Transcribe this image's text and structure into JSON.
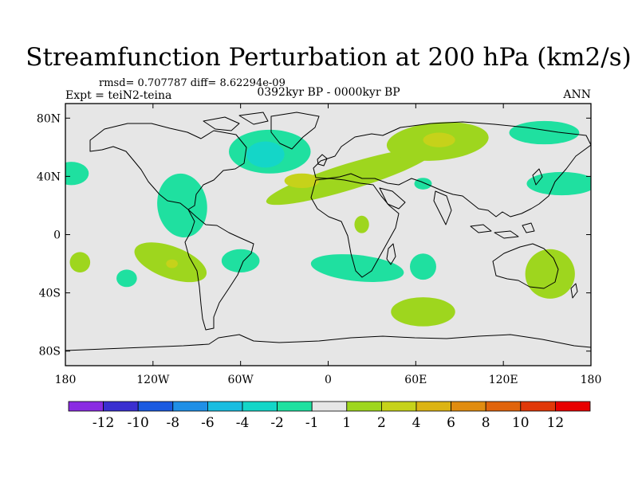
{
  "chart_data": {
    "type": "heatmap",
    "title": "Streamfunction Perturbation at 200 hPa (km2/s)",
    "stats_line": "rmsd= 0.707787 diff= 8.62294e-09",
    "left_label": "Expt = teiN2-teina",
    "center_label": "0392kyr BP - 0000kyr BP",
    "right_label": "ANN",
    "x_axis": {
      "range": [
        -180,
        180
      ],
      "ticks": [
        {
          "value": -180,
          "label": "180"
        },
        {
          "value": -120,
          "label": "120W"
        },
        {
          "value": -60,
          "label": "60W"
        },
        {
          "value": 0,
          "label": "0"
        },
        {
          "value": 60,
          "label": "60E"
        },
        {
          "value": 120,
          "label": "120E"
        },
        {
          "value": 180,
          "label": "180"
        }
      ]
    },
    "y_axis": {
      "range": [
        -90,
        90
      ],
      "ticks": [
        {
          "value": 80,
          "label": "80N"
        },
        {
          "value": 40,
          "label": "40N"
        },
        {
          "value": 0,
          "label": "0"
        },
        {
          "value": -40,
          "label": "40S"
        },
        {
          "value": -80,
          "label": "80S"
        }
      ]
    },
    "colorbar": {
      "colors": [
        "#8a2be2",
        "#3a2fd0",
        "#1a5ae0",
        "#1f8fe6",
        "#19bde0",
        "#14d6c8",
        "#1fe0a0",
        "#e6e6e6",
        "#9ed61e",
        "#c6d21a",
        "#dcb414",
        "#e08c10",
        "#e0640c",
        "#e03808",
        "#e80000"
      ],
      "boundaries": [
        -12,
        -10,
        -8,
        -6,
        -4,
        -2,
        -1,
        1,
        2,
        4,
        6,
        8,
        10,
        12
      ],
      "labels": [
        "-12",
        "-10",
        "-8",
        "-6",
        "-4",
        "-2",
        "-1",
        "1",
        "2",
        "4",
        "6",
        "8",
        "10",
        "12"
      ]
    },
    "background_value_color": "#e6e6e6",
    "anomalies": [
      {
        "name": "north-atlantic-negative",
        "lon": -40,
        "lat": 57,
        "rlon": 28,
        "rlat": 15,
        "color": "#1fe0a0"
      },
      {
        "name": "north-atlantic-negative-core",
        "lon": -43,
        "lat": 55,
        "rlon": 13,
        "rlat": 9,
        "color": "#14d6c8"
      },
      {
        "name": "atlantic-eurasia-positive-belt",
        "lon": 15,
        "lat": 40,
        "rlon": 60,
        "rlat": 9,
        "rotate": -17,
        "color": "#9ed61e"
      },
      {
        "name": "siberia-positive",
        "lon": 75,
        "lat": 64,
        "rlon": 35,
        "rlat": 13,
        "rotate": -5,
        "color": "#9ed61e"
      },
      {
        "name": "siberia-positive-core",
        "lon": 76,
        "lat": 65,
        "rlon": 11,
        "rlat": 5,
        "color": "#c6d21a"
      },
      {
        "name": "atlantic-positive-core",
        "lon": -18,
        "lat": 37,
        "rlon": 12,
        "rlat": 5,
        "color": "#c6d21a"
      },
      {
        "name": "northeast-pacific-negative",
        "lon": 148,
        "lat": 70,
        "rlon": 24,
        "rlat": 8,
        "color": "#1fe0a0"
      },
      {
        "name": "north-pacific-negative",
        "lon": 160,
        "lat": 35,
        "rlon": 24,
        "rlat": 8,
        "color": "#1fe0a0"
      },
      {
        "name": "west-pacific-negative",
        "lon": -176,
        "lat": 42,
        "rlon": 12,
        "rlat": 8,
        "color": "#1fe0a0"
      },
      {
        "name": "caribbean-negative",
        "lon": -100,
        "lat": 20,
        "rlon": 17,
        "rlat": 22,
        "rotate": -8,
        "color": "#1fe0a0"
      },
      {
        "name": "east-pacific-positive",
        "lon": -108,
        "lat": -19,
        "rlon": 26,
        "rlat": 11,
        "rotate": 20,
        "color": "#9ed61e"
      },
      {
        "name": "east-pacific-positive-core",
        "lon": -107,
        "lat": -20,
        "rlon": 4,
        "rlat": 3,
        "color": "#c6d21a"
      },
      {
        "name": "south-pacific-positive",
        "lon": -170,
        "lat": -19,
        "rlon": 7,
        "rlat": 7,
        "color": "#9ed61e"
      },
      {
        "name": "south-pacific-negative",
        "lon": -138,
        "lat": -30,
        "rlon": 7,
        "rlat": 6,
        "color": "#1fe0a0"
      },
      {
        "name": "south-atlantic-negative",
        "lon": -60,
        "lat": -18,
        "rlon": 13,
        "rlat": 8,
        "color": "#1fe0a0"
      },
      {
        "name": "south-africa-negative",
        "lon": 20,
        "lat": -23,
        "rlon": 32,
        "rlat": 9,
        "rotate": 6,
        "color": "#1fe0a0"
      },
      {
        "name": "indian-ocean-negative",
        "lon": 65,
        "lat": -22,
        "rlon": 9,
        "rlat": 9,
        "color": "#1fe0a0"
      },
      {
        "name": "sahara-positive",
        "lon": 23,
        "lat": 7,
        "rlon": 5,
        "rlat": 6,
        "color": "#9ed61e"
      },
      {
        "name": "middle-east-negative",
        "lon": 65,
        "lat": 35,
        "rlon": 6,
        "rlat": 4,
        "color": "#1fe0a0"
      },
      {
        "name": "australia-positive",
        "lon": 152,
        "lat": -27,
        "rlon": 17,
        "rlat": 17,
        "color": "#9ed61e"
      },
      {
        "name": "southern-ocean-positive",
        "lon": 65,
        "lat": -53,
        "rlon": 22,
        "rlat": 10,
        "color": "#9ed61e"
      }
    ]
  }
}
